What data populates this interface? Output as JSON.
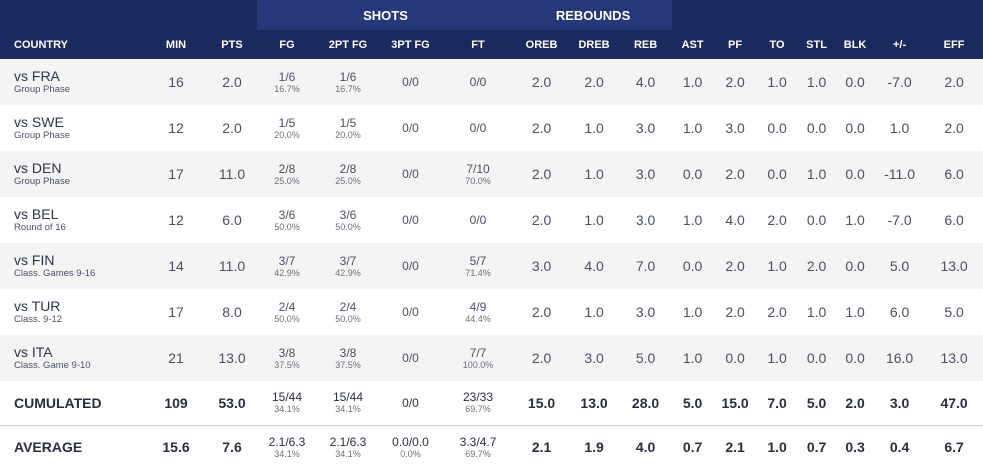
{
  "group_headers": {
    "shots": "SHOTS",
    "rebounds": "REBOUNDS"
  },
  "columns": [
    "COUNTRY",
    "MIN",
    "PTS",
    "FG",
    "2PT FG",
    "3PT FG",
    "FT",
    "OREB",
    "DREB",
    "REB",
    "AST",
    "PF",
    "TO",
    "STL",
    "BLK",
    "+/-",
    "EFF"
  ],
  "games": [
    {
      "opponent": "vs FRA",
      "phase": "Group Phase",
      "min": "16",
      "pts": "2.0",
      "fg": "1/6",
      "fg_pct": "16.7%",
      "fg2": "1/6",
      "fg2_pct": "16.7%",
      "fg3": "0/0",
      "ft": "0/0",
      "ft_pct": "",
      "oreb": "2.0",
      "dreb": "2.0",
      "reb": "4.0",
      "ast": "1.0",
      "pf": "2.0",
      "to": "1.0",
      "stl": "1.0",
      "blk": "0.0",
      "pm": "-7.0",
      "eff": "2.0"
    },
    {
      "opponent": "vs SWE",
      "phase": "Group Phase",
      "min": "12",
      "pts": "2.0",
      "fg": "1/5",
      "fg_pct": "20.0%",
      "fg2": "1/5",
      "fg2_pct": "20.0%",
      "fg3": "0/0",
      "ft": "0/0",
      "ft_pct": "",
      "oreb": "2.0",
      "dreb": "1.0",
      "reb": "3.0",
      "ast": "1.0",
      "pf": "3.0",
      "to": "0.0",
      "stl": "0.0",
      "blk": "0.0",
      "pm": "1.0",
      "eff": "2.0"
    },
    {
      "opponent": "vs DEN",
      "phase": "Group Phase",
      "min": "17",
      "pts": "11.0",
      "fg": "2/8",
      "fg_pct": "25.0%",
      "fg2": "2/8",
      "fg2_pct": "25.0%",
      "fg3": "0/0",
      "ft": "7/10",
      "ft_pct": "70.0%",
      "oreb": "2.0",
      "dreb": "1.0",
      "reb": "3.0",
      "ast": "0.0",
      "pf": "2.0",
      "to": "0.0",
      "stl": "1.0",
      "blk": "0.0",
      "pm": "-11.0",
      "eff": "6.0"
    },
    {
      "opponent": "vs BEL",
      "phase": "Round of 16",
      "min": "12",
      "pts": "6.0",
      "fg": "3/6",
      "fg_pct": "50.0%",
      "fg2": "3/6",
      "fg2_pct": "50.0%",
      "fg3": "0/0",
      "ft": "0/0",
      "ft_pct": "",
      "oreb": "2.0",
      "dreb": "1.0",
      "reb": "3.0",
      "ast": "1.0",
      "pf": "4.0",
      "to": "2.0",
      "stl": "0.0",
      "blk": "1.0",
      "pm": "-7.0",
      "eff": "6.0"
    },
    {
      "opponent": "vs FIN",
      "phase": "Class. Games 9-16",
      "min": "14",
      "pts": "11.0",
      "fg": "3/7",
      "fg_pct": "42.9%",
      "fg2": "3/7",
      "fg2_pct": "42.9%",
      "fg3": "0/0",
      "ft": "5/7",
      "ft_pct": "71.4%",
      "oreb": "3.0",
      "dreb": "4.0",
      "reb": "7.0",
      "ast": "0.0",
      "pf": "2.0",
      "to": "1.0",
      "stl": "2.0",
      "blk": "0.0",
      "pm": "5.0",
      "eff": "13.0"
    },
    {
      "opponent": "vs TUR",
      "phase": "Class. 9-12",
      "min": "17",
      "pts": "8.0",
      "fg": "2/4",
      "fg_pct": "50.0%",
      "fg2": "2/4",
      "fg2_pct": "50.0%",
      "fg3": "0/0",
      "ft": "4/9",
      "ft_pct": "44.4%",
      "oreb": "2.0",
      "dreb": "1.0",
      "reb": "3.0",
      "ast": "1.0",
      "pf": "2.0",
      "to": "2.0",
      "stl": "1.0",
      "blk": "1.0",
      "pm": "6.0",
      "eff": "5.0"
    },
    {
      "opponent": "vs ITA",
      "phase": "Class. Game 9-10",
      "min": "21",
      "pts": "13.0",
      "fg": "3/8",
      "fg_pct": "37.5%",
      "fg2": "3/8",
      "fg2_pct": "37.5%",
      "fg3": "0/0",
      "ft": "7/7",
      "ft_pct": "100.0%",
      "oreb": "2.0",
      "dreb": "3.0",
      "reb": "5.0",
      "ast": "1.0",
      "pf": "0.0",
      "to": "1.0",
      "stl": "0.0",
      "blk": "0.0",
      "pm": "16.0",
      "eff": "13.0"
    }
  ],
  "cumulated": {
    "label": "CUMULATED",
    "min": "109",
    "pts": "53.0",
    "fg": "15/44",
    "fg_pct": "34.1%",
    "fg2": "15/44",
    "fg2_pct": "34.1%",
    "fg3": "0/0",
    "fg3_pct": "",
    "ft": "23/33",
    "ft_pct": "69.7%",
    "oreb": "15.0",
    "dreb": "13.0",
    "reb": "28.0",
    "ast": "5.0",
    "pf": "15.0",
    "to": "7.0",
    "stl": "5.0",
    "blk": "2.0",
    "pm": "3.0",
    "eff": "47.0"
  },
  "average": {
    "label": "AVERAGE",
    "min": "15.6",
    "pts": "7.6",
    "fg": "2.1/6.3",
    "fg_pct": "34.1%",
    "fg2": "2.1/6.3",
    "fg2_pct": "34.1%",
    "fg3": "0.0/0.0",
    "fg3_pct": "0.0%",
    "ft": "3.3/4.7",
    "ft_pct": "69.7%",
    "oreb": "2.1",
    "dreb": "1.9",
    "reb": "4.0",
    "ast": "0.7",
    "pf": "2.1",
    "to": "1.0",
    "stl": "0.7",
    "blk": "0.3",
    "pm": "0.4",
    "eff": "6.7"
  }
}
